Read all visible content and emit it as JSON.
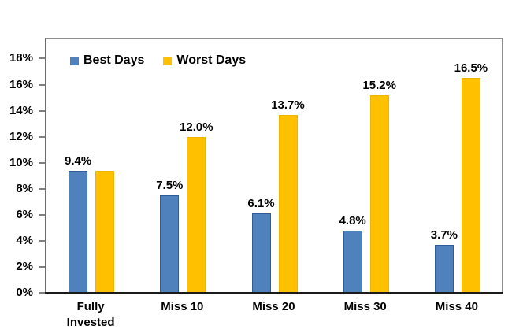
{
  "chart_data": {
    "type": "bar",
    "title": "",
    "xlabel": "",
    "ylabel": "",
    "categories": [
      "Fully Invested",
      "Miss 10",
      "Miss 20",
      "Miss 30",
      "Miss 40"
    ],
    "series": [
      {
        "name": "Best Days",
        "color": "#4F81BD",
        "border_color": "#2E5B9B",
        "values": [
          9.4,
          7.5,
          6.1,
          4.8,
          3.7
        ],
        "labels": [
          "9.4%",
          "7.5%",
          "6.1%",
          "4.8%",
          "3.7%"
        ]
      },
      {
        "name": "Worst Days",
        "color": "#FFC000",
        "border_color": "#F0B400",
        "values": [
          9.4,
          12.0,
          13.7,
          15.2,
          16.5
        ],
        "labels": [
          "",
          "12.0%",
          "13.7%",
          "15.2%",
          "16.5%"
        ]
      }
    ],
    "y_ticks": [
      "0%",
      "2%",
      "4%",
      "6%",
      "8%",
      "10%",
      "12%",
      "14%",
      "16%",
      "18%"
    ],
    "y_tick_values": [
      0,
      2,
      4,
      6,
      8,
      10,
      12,
      14,
      16,
      18
    ],
    "ylim": [
      0,
      19.6
    ],
    "grid": false,
    "legend_position": "top-left-inside"
  }
}
